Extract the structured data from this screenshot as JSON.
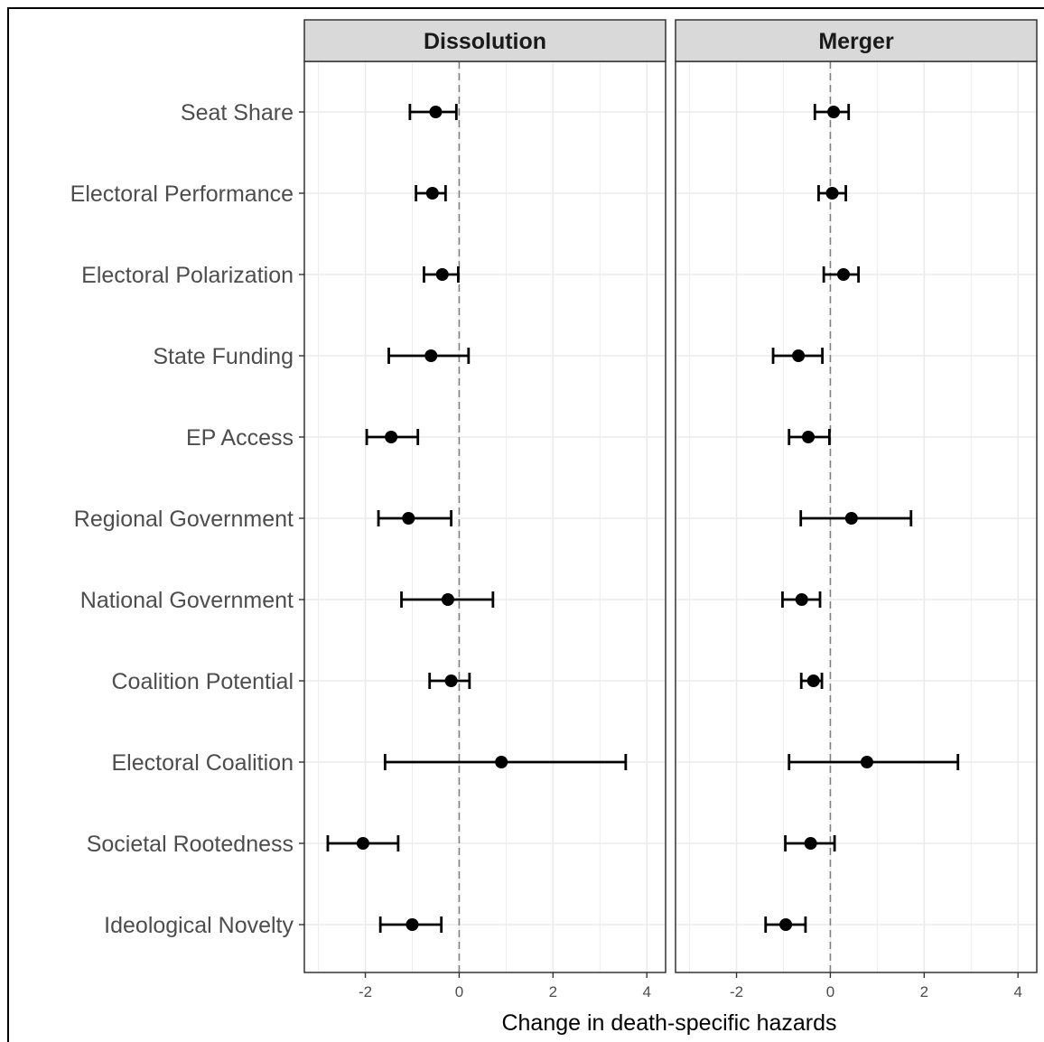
{
  "chart_data": {
    "type": "scatter",
    "subtype": "point-range with horizontal error bars (faceted)",
    "xlabel": "Change in death-specific hazards",
    "ylabel": "",
    "xlim": [
      -3.3,
      4.4
    ],
    "x_ticks": [
      -2,
      0,
      2,
      4
    ],
    "x_tick_labels": [
      "-2",
      "0",
      "2",
      "4"
    ],
    "reference_line": 0,
    "grid": true,
    "legend": "none",
    "colors": {
      "point": "#000000",
      "grid": "#ebebeb",
      "strip_bg": "#d9d9d9",
      "ref_line": "#808080"
    },
    "categories": [
      "Seat Share",
      "Electoral Performance",
      "Electoral Polarization",
      "State Funding",
      "EP Access",
      "Regional Government",
      "National Government",
      "Coalition Potential",
      "Electoral Coalition",
      "Societal Rootedness",
      "Ideological Novelty"
    ],
    "panels": [
      {
        "title": "Dissolution",
        "estimate": [
          -0.5,
          -0.57,
          -0.36,
          -0.6,
          -1.45,
          -1.08,
          -0.24,
          -0.17,
          0.9,
          -2.05,
          -1.0
        ],
        "lower": [
          -1.05,
          -0.92,
          -0.75,
          -1.5,
          -1.97,
          -1.72,
          -1.23,
          -0.63,
          -1.58,
          -2.8,
          -1.68
        ],
        "upper": [
          -0.06,
          -0.29,
          -0.02,
          0.2,
          -0.88,
          -0.17,
          0.72,
          0.22,
          3.55,
          -1.3,
          -0.38
        ]
      },
      {
        "title": "Merger",
        "estimate": [
          0.07,
          0.04,
          0.28,
          -0.68,
          -0.47,
          0.45,
          -0.61,
          -0.36,
          0.78,
          -0.42,
          -0.95
        ],
        "lower": [
          -0.33,
          -0.25,
          -0.14,
          -1.22,
          -0.88,
          -0.63,
          -1.02,
          -0.62,
          -0.88,
          -0.96,
          -1.38
        ],
        "upper": [
          0.39,
          0.33,
          0.6,
          -0.17,
          -0.02,
          1.72,
          -0.22,
          -0.18,
          2.72,
          0.09,
          -0.53
        ]
      }
    ]
  }
}
